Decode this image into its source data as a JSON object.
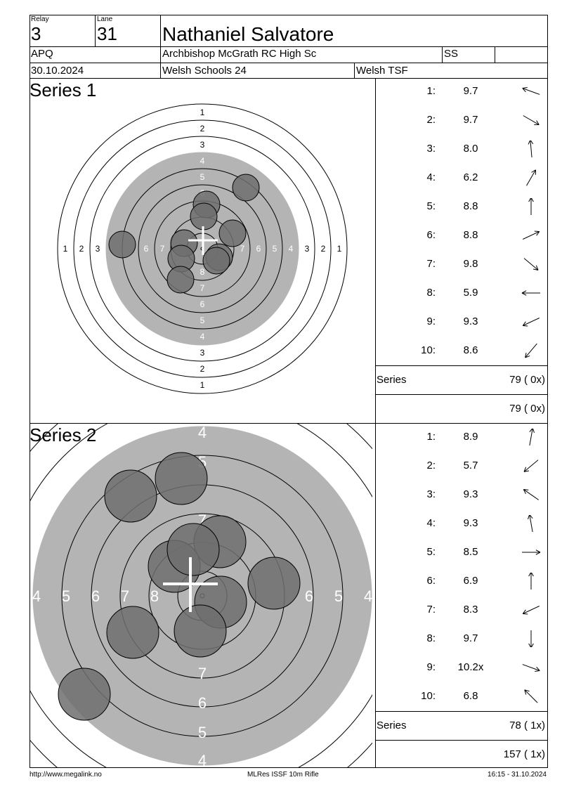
{
  "header": {
    "relay_label": "Relay",
    "relay": "3",
    "lane_label": "Lane",
    "lane": "31",
    "name": "Nathaniel Salvatore",
    "class": "APQ",
    "club": "Archbishop McGrath RC High Sc",
    "category": "SS",
    "extra": "",
    "date": "30.10.2024",
    "competition": "Welsh Schools 24",
    "organizer": "Welsh TSF"
  },
  "series1": {
    "title": "Series 1",
    "shots": [
      {
        "no": "1:",
        "value": "9.7",
        "dir_deg": 200
      },
      {
        "no": "2:",
        "value": "9.7",
        "dir_deg": 30
      },
      {
        "no": "3:",
        "value": "8.0",
        "dir_deg": -95
      },
      {
        "no": "4:",
        "value": "6.2",
        "dir_deg": -60
      },
      {
        "no": "5:",
        "value": "8.8",
        "dir_deg": -90
      },
      {
        "no": "6:",
        "value": "8.8",
        "dir_deg": -25
      },
      {
        "no": "7:",
        "value": "9.8",
        "dir_deg": 40
      },
      {
        "no": "8:",
        "value": "5.9",
        "dir_deg": 180
      },
      {
        "no": "9:",
        "value": "9.3",
        "dir_deg": 155
      },
      {
        "no": "10:",
        "value": "8.6",
        "dir_deg": 130
      }
    ],
    "series_label": "Series",
    "series_total": "79 ( 0x)",
    "running_total": "79 ( 0x)"
  },
  "series2": {
    "title": "Series 2",
    "shots": [
      {
        "no": "1:",
        "value": "8.9",
        "dir_deg": -80
      },
      {
        "no": "2:",
        "value": "5.7",
        "dir_deg": 140
      },
      {
        "no": "3:",
        "value": "9.3",
        "dir_deg": 215
      },
      {
        "no": "4:",
        "value": "9.3",
        "dir_deg": -100
      },
      {
        "no": "5:",
        "value": "8.5",
        "dir_deg": 0
      },
      {
        "no": "6:",
        "value": "6.9",
        "dir_deg": -90
      },
      {
        "no": "7:",
        "value": "8.3",
        "dir_deg": 155
      },
      {
        "no": "8:",
        "value": "9.7",
        "dir_deg": 90
      },
      {
        "no": "9:",
        "value": "10.2x",
        "dir_deg": 20
      },
      {
        "no": "10:",
        "value": "6.8",
        "dir_deg": 225
      }
    ],
    "series_label": "Series",
    "series_total": "78 ( 1x)",
    "running_total": "157 ( 1x)"
  },
  "target_ring_numbers": [
    "1",
    "2",
    "3",
    "4",
    "5",
    "6",
    "7",
    "8"
  ],
  "colors": {
    "gray": "#b4b4b4",
    "hole": "#6e6e6e"
  },
  "footer": {
    "url": "http://www.megalink.no",
    "program": "MLRes ISSF 10m Rifle",
    "printed": "16:15 - 31.10.2024"
  }
}
